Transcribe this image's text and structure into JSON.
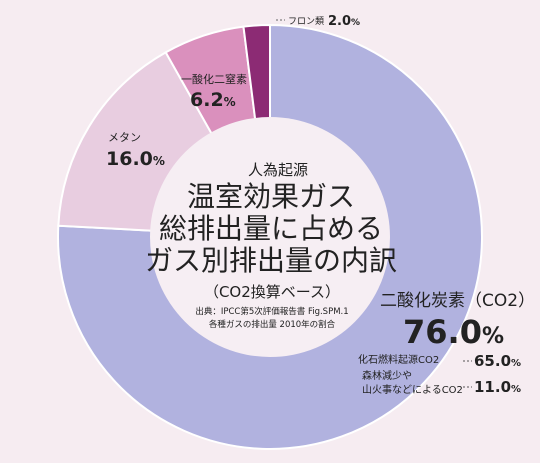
{
  "chart_data": {
    "type": "donut",
    "title_top": "人為起源",
    "title_lines": [
      "温室効果ガス",
      "総排出量に占める",
      "ガス別排出量の内訳"
    ],
    "subtitle": "（CO2換算ベース）",
    "source_lines": [
      "出典：IPCC第5次評価報告書 Fig.SPM.1",
      "各種ガスの排出量 2010年の割合"
    ],
    "unit": "%",
    "slices": [
      {
        "label": "二酸化炭素（CO2）",
        "value": 76.0,
        "value_text": "76.0",
        "color": "#b1b2df"
      },
      {
        "label": "メタン",
        "value": 16.0,
        "value_text": "16.0",
        "color": "#e8cde0"
      },
      {
        "label": "一酸化二窒素",
        "value": 6.2,
        "value_text": "6.2",
        "color": "#da90bd"
      },
      {
        "label": "フロン類",
        "value": 2.0,
        "value_text": "2.0",
        "color": "#8c2b74"
      }
    ],
    "breakdown": {
      "fossil_label": "化石燃料起源CO2",
      "fossil_value": "65.0",
      "forest_label_1": "森林減少や",
      "forest_label_2": "山火事などによるCO2",
      "forest_value": "11.0"
    }
  }
}
